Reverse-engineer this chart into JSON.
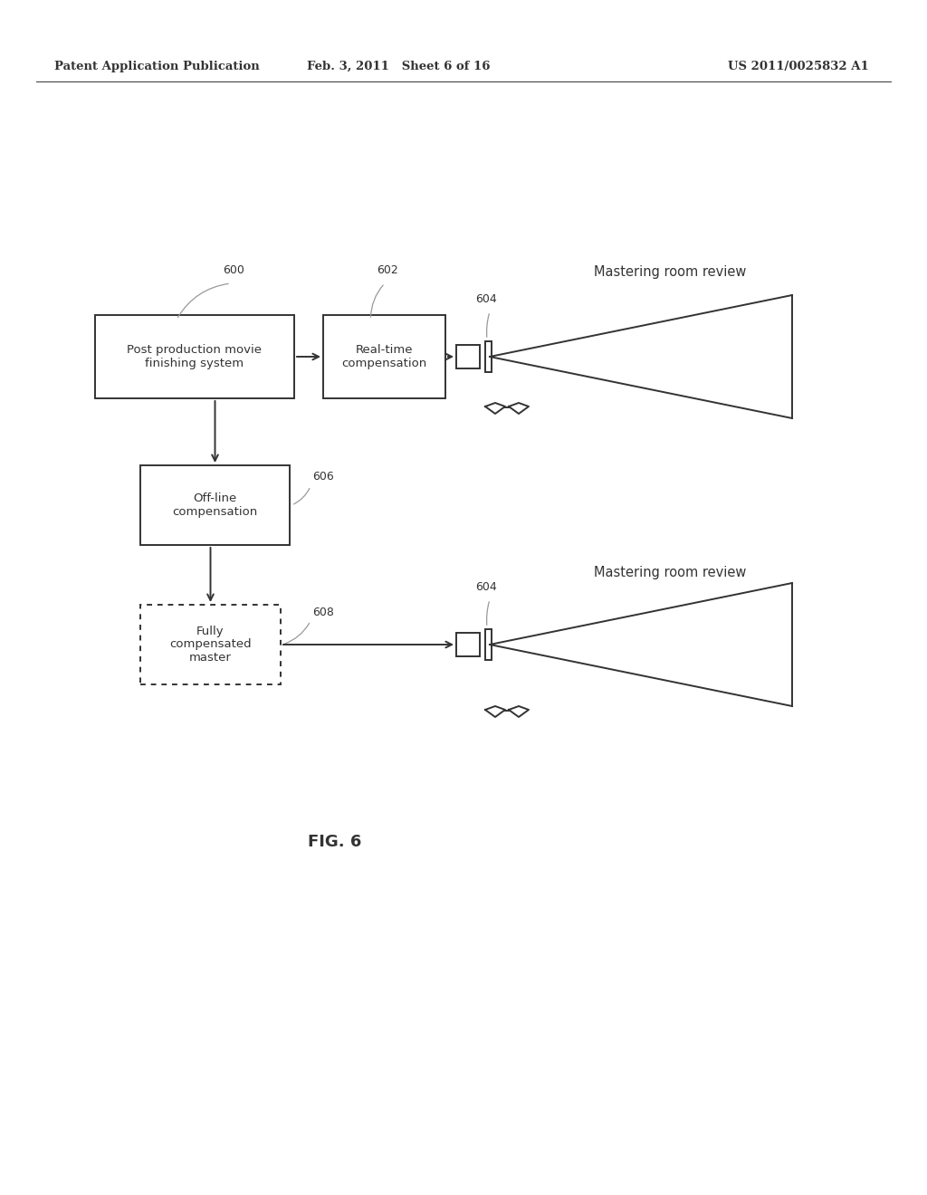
{
  "bg_color": "#ffffff",
  "text_color": "#1a1a1a",
  "header_left": "Patent Application Publication",
  "header_mid": "Feb. 3, 2011   Sheet 6 of 16",
  "header_right": "US 2011/0025832 A1",
  "fig_label": "FIG. 6",
  "box600_label": "Post production movie\nfinishing system",
  "box602_label": "Real-time\ncompensation",
  "box606_label": "Off-line\ncompensation",
  "box608_label": "Fully\ncompensated\nmaster",
  "label600": "600",
  "label602": "602",
  "label604": "604",
  "label606": "606",
  "label608": "608",
  "mastering_label": "Mastering room review",
  "line_color": "#333333",
  "gray": "#999999"
}
